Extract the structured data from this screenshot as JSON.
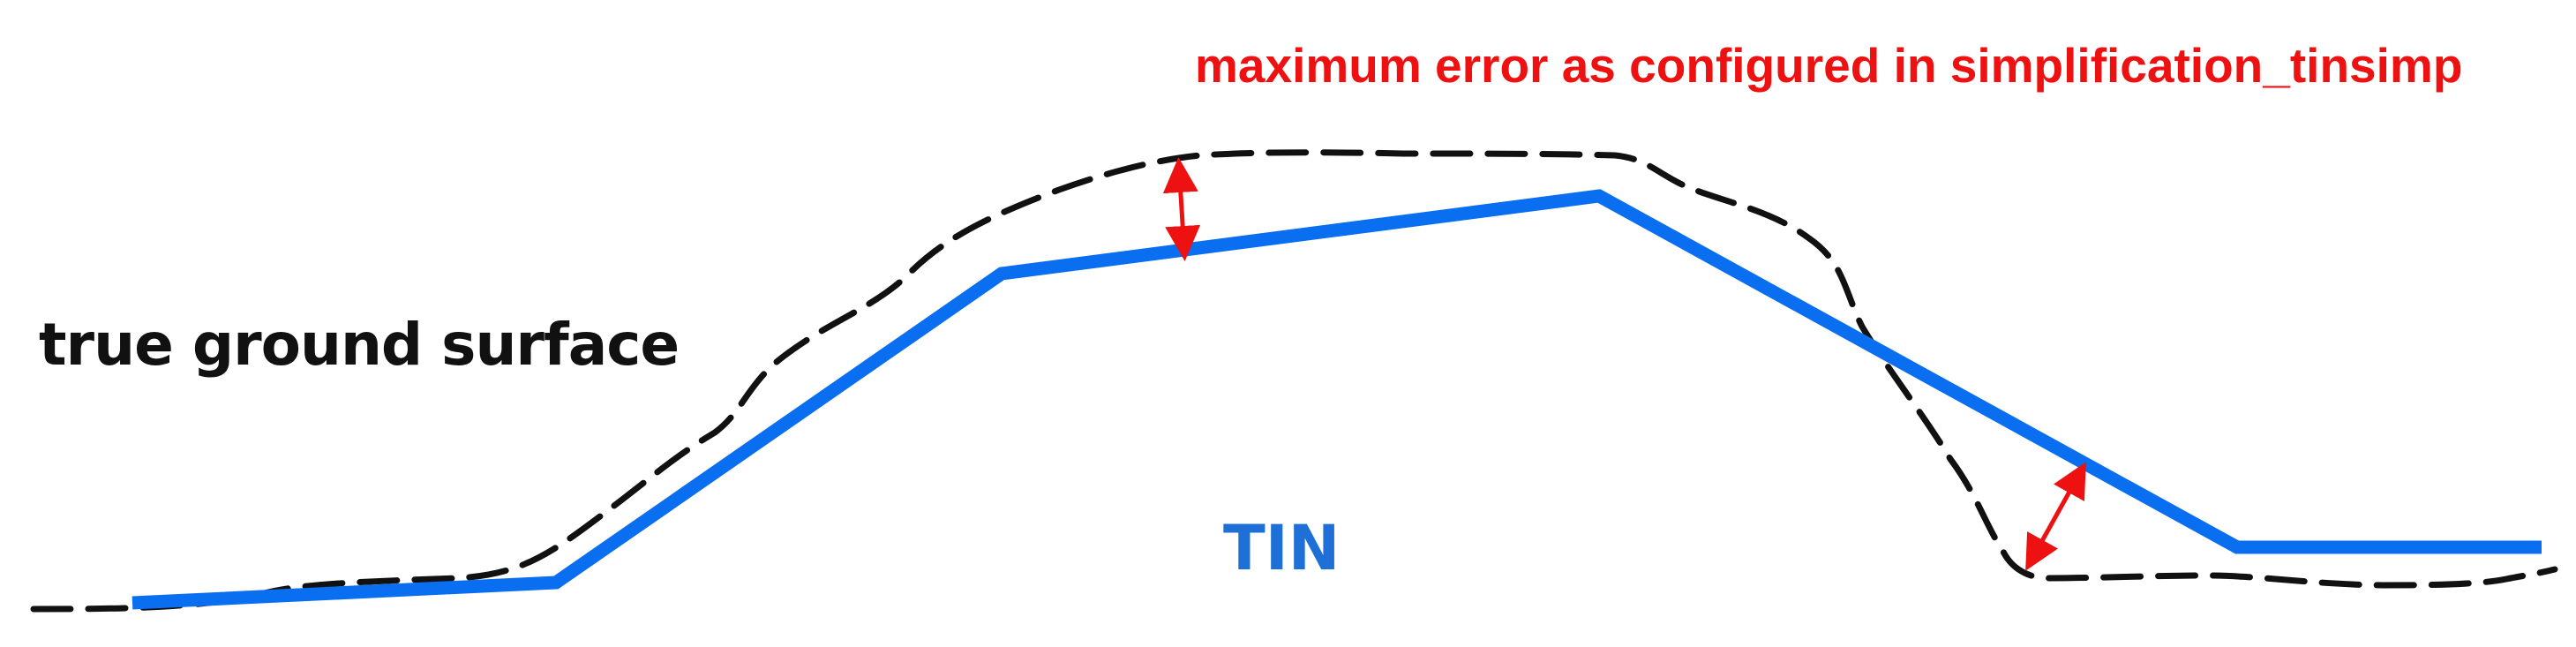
{
  "labels": {
    "ground": "true ground surface",
    "tin": "TIN",
    "error": "maximum error as configured in simplification_tinsimp"
  },
  "colors": {
    "ground_line": "#111111",
    "tin_line": "#0a6ef0",
    "tin_label": "#1e6fd6",
    "error": "#ee1111",
    "background": "#ffffff"
  }
}
